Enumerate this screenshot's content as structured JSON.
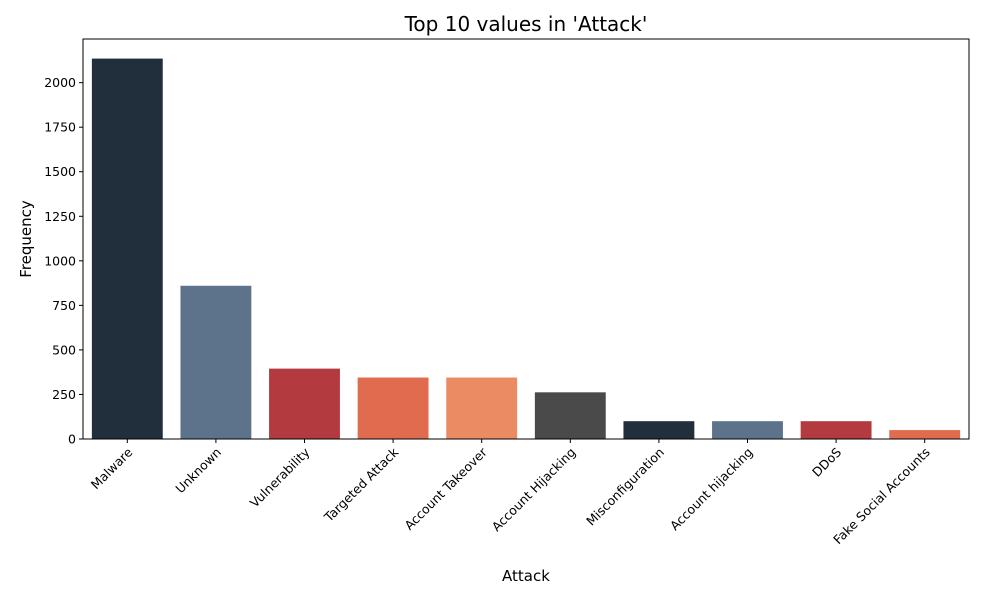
{
  "chart_data": {
    "type": "bar",
    "title": "Top 10 values in 'Attack'",
    "xlabel": "Attack",
    "ylabel": "Frequency",
    "categories": [
      "Malware",
      "Unknown",
      "Vulnerability",
      "Targeted Attack",
      "Account Takeover",
      "Account Hijacking",
      "Misconfiguration",
      "Account hijacking",
      "DDoS",
      "Fake Social Accounts"
    ],
    "values": [
      2135,
      860,
      395,
      345,
      345,
      262,
      100,
      100,
      100,
      50
    ],
    "colors": [
      "#212f3d",
      "#5d738b",
      "#b33a3f",
      "#e16b4e",
      "#ea8b64",
      "#4a4a4a",
      "#212f3d",
      "#5d738b",
      "#b33a3f",
      "#e16b4e"
    ],
    "ylim": [
      0,
      2245
    ],
    "yticks": [
      0,
      250,
      500,
      750,
      1000,
      1250,
      1500,
      1750,
      2000
    ],
    "grid": false,
    "legend": "none"
  }
}
